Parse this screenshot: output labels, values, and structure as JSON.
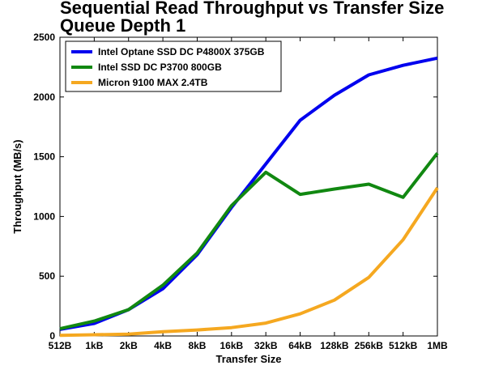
{
  "chart_data": {
    "type": "line",
    "title": [
      "Sequential Read Throughput vs Transfer Size",
      "Queue Depth 1"
    ],
    "xlabel": "Transfer Size",
    "ylabel": "Throughput (MB/s)",
    "categories": [
      "512B",
      "1kB",
      "2kB",
      "4kB",
      "8kB",
      "16kB",
      "32kB",
      "64kB",
      "128kB",
      "256kB",
      "512kB",
      "1MB"
    ],
    "ylim": [
      0,
      2500
    ],
    "yticks": [
      0,
      500,
      1000,
      1500,
      2000,
      2500
    ],
    "grid": false,
    "legend_position": "top-left",
    "series": [
      {
        "name": "Intel Optane SSD DC P4800X 375GB",
        "color": "#0000ee",
        "values": [
          55,
          105,
          220,
          395,
          680,
          1075,
          1440,
          1805,
          2015,
          2185,
          2265,
          2325
        ]
      },
      {
        "name": "Intel SSD DC P3700 800GB",
        "color": "#118811",
        "values": [
          60,
          125,
          220,
          425,
          695,
          1090,
          1370,
          1185,
          1230,
          1270,
          1160,
          1530
        ]
      },
      {
        "name": "Micron 9100 MAX 2.4TB",
        "color": "#f5a820",
        "values": [
          5,
          10,
          15,
          35,
          50,
          70,
          108,
          185,
          300,
          490,
          805,
          1240
        ]
      }
    ]
  }
}
